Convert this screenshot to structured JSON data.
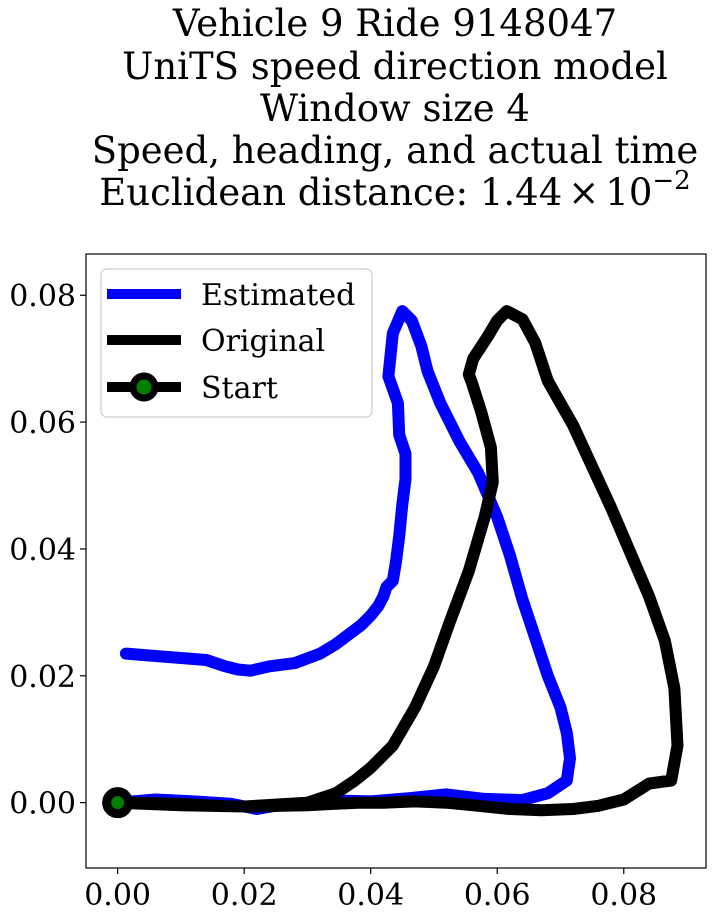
{
  "chart_data": {
    "type": "line",
    "title_lines": [
      "Vehicle 9 Ride 9148047",
      "UniTS speed direction model",
      "Window size 4",
      "Speed, heading, and actual time"
    ],
    "title_distance": {
      "prefix": "Euclidean distance: ",
      "mantissa": "1.44",
      "times": "×",
      "base": "10",
      "exponent": "−2"
    },
    "xlabel": "",
    "ylabel": "",
    "xlim": [
      -0.005,
      0.093
    ],
    "ylim": [
      -0.0103,
      0.0865
    ],
    "xticks": [
      0.0,
      0.02,
      0.04,
      0.06,
      0.08
    ],
    "xtick_labels": [
      "0.00",
      "0.02",
      "0.04",
      "0.06",
      "0.08"
    ],
    "yticks": [
      0.0,
      0.02,
      0.04,
      0.06,
      0.08
    ],
    "ytick_labels": [
      "0.00",
      "0.02",
      "0.04",
      "0.06",
      "0.08"
    ],
    "grid": false,
    "legend_position": "upper left",
    "series": [
      {
        "name": "Estimated",
        "color": "#0000ff",
        "x": [
          0.0,
          0.006,
          0.012,
          0.018,
          0.022,
          0.026,
          0.032,
          0.036,
          0.04,
          0.046,
          0.052,
          0.058,
          0.064,
          0.068,
          0.071,
          0.0715,
          0.071,
          0.07,
          0.068,
          0.066,
          0.064,
          0.062,
          0.06,
          0.057,
          0.054,
          0.051,
          0.049,
          0.048,
          0.0465,
          0.045,
          0.0435,
          0.0428,
          0.0443,
          0.0445,
          0.0455,
          0.0455,
          0.045,
          0.0445,
          0.044,
          0.0435,
          0.0425,
          0.042,
          0.0412,
          0.04,
          0.0385,
          0.0365,
          0.0345,
          0.032,
          0.028,
          0.024,
          0.021,
          0.019,
          0.017,
          0.014,
          0.01,
          0.005,
          0.0013
        ],
        "y": [
          0.0,
          0.0005,
          0.0002,
          -0.0002,
          -0.001,
          -0.0003,
          0.0,
          0.0003,
          0.0002,
          0.0007,
          0.0013,
          0.0006,
          0.0004,
          0.0015,
          0.0035,
          0.007,
          0.011,
          0.015,
          0.02,
          0.026,
          0.032,
          0.039,
          0.045,
          0.052,
          0.057,
          0.063,
          0.068,
          0.072,
          0.076,
          0.0775,
          0.074,
          0.0672,
          0.063,
          0.058,
          0.055,
          0.051,
          0.047,
          0.042,
          0.038,
          0.035,
          0.034,
          0.0325,
          0.031,
          0.0295,
          0.028,
          0.0265,
          0.025,
          0.0235,
          0.022,
          0.0215,
          0.0208,
          0.021,
          0.0215,
          0.0225,
          0.0228,
          0.0232,
          0.0235
        ]
      },
      {
        "name": "Original",
        "color": "#000000",
        "x": [
          0.0,
          0.01,
          0.02,
          0.03,
          0.0345,
          0.0375,
          0.04,
          0.0435,
          0.047,
          0.05,
          0.0525,
          0.0555,
          0.058,
          0.0593,
          0.059,
          0.0575,
          0.056,
          0.0555,
          0.0562,
          0.0585,
          0.06,
          0.0615,
          0.064,
          0.066,
          0.068,
          0.072,
          0.075,
          0.078,
          0.081,
          0.084,
          0.0865,
          0.088,
          0.0885,
          0.0875,
          0.084,
          0.08,
          0.076,
          0.072,
          0.067,
          0.062,
          0.057,
          0.052,
          0.047,
          0.042,
          0.038,
          0.034,
          0.03,
          0.026,
          0.022,
          0.018,
          0.014,
          0.01,
          0.006,
          0.002,
          0.0
        ],
        "y": [
          0.0,
          -0.0004,
          -0.0006,
          0.0,
          0.0015,
          0.0035,
          0.0055,
          0.009,
          0.015,
          0.0215,
          0.0285,
          0.0365,
          0.045,
          0.0505,
          0.056,
          0.0615,
          0.0662,
          0.0675,
          0.07,
          0.0735,
          0.076,
          0.0775,
          0.0762,
          0.0725,
          0.0665,
          0.0595,
          0.053,
          0.0465,
          0.0395,
          0.0325,
          0.0255,
          0.018,
          0.009,
          0.0035,
          0.003,
          0.0005,
          -0.0005,
          -0.001,
          -0.0012,
          -0.001,
          -0.0005,
          0.0,
          0.0002,
          0.0,
          0.0,
          -0.0002,
          -0.0004,
          -0.0005,
          -0.0006,
          -0.0006,
          -0.0004,
          -0.0002,
          -0.0001,
          0.0,
          0.0
        ]
      }
    ],
    "start_marker": {
      "name": "Start",
      "x": 0.0,
      "y": 0.0,
      "face_color": "#008000",
      "edge_color": "#000000"
    },
    "legend": [
      {
        "label": "Estimated",
        "color": "#0000ff",
        "marker": false
      },
      {
        "label": "Original",
        "color": "#000000",
        "marker": false
      },
      {
        "label": "Start",
        "color": "#000000",
        "marker": true,
        "marker_face": "#008000"
      }
    ]
  }
}
